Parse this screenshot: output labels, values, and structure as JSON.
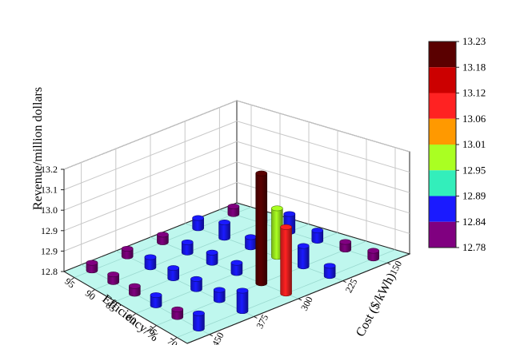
{
  "chart_data": {
    "type": "bar3d",
    "title": "",
    "zlabel": "Revenue/million dollars",
    "xlabel": "Efficiency/%",
    "ylabel": "Cost ($/kWh)",
    "z_ticks": [
      "12.8",
      "12.9",
      "12.9",
      "13.0",
      "13.1",
      "13.2"
    ],
    "zlim": [
      12.8,
      13.2
    ],
    "x_ticks": [
      "95",
      "90",
      "85",
      "80",
      "75",
      "70"
    ],
    "y_ticks": [
      "150",
      "225",
      "300",
      "375",
      "450"
    ],
    "colorbar": {
      "labels": [
        "13.23",
        "13.18",
        "13.12",
        "13.06",
        "13.01",
        "12.95",
        "12.89",
        "12.84",
        "12.78"
      ],
      "colors": [
        "#5a0000",
        "#cc0000",
        "#ff2222",
        "#ff9900",
        "#aaff22",
        "#33eebb",
        "#1a1aff",
        "#800080"
      ]
    },
    "bars": [
      {
        "x": 95,
        "y": 150,
        "z": 12.83
      },
      {
        "x": 95,
        "y": 225,
        "z": 12.84
      },
      {
        "x": 95,
        "y": 300,
        "z": 12.83
      },
      {
        "x": 95,
        "y": 375,
        "z": 12.83
      },
      {
        "x": 95,
        "y": 450,
        "z": 12.83
      },
      {
        "x": 90,
        "y": 150,
        "z": 12.84
      },
      {
        "x": 90,
        "y": 225,
        "z": 12.86
      },
      {
        "x": 90,
        "y": 300,
        "z": 12.84
      },
      {
        "x": 90,
        "y": 375,
        "z": 12.84
      },
      {
        "x": 90,
        "y": 450,
        "z": 12.83
      },
      {
        "x": 85,
        "y": 150,
        "z": 12.87
      },
      {
        "x": 85,
        "y": 225,
        "z": 12.84
      },
      {
        "x": 85,
        "y": 300,
        "z": 12.84
      },
      {
        "x": 85,
        "y": 375,
        "z": 12.84
      },
      {
        "x": 85,
        "y": 450,
        "z": 12.83
      },
      {
        "x": 80,
        "y": 150,
        "z": 12.84
      },
      {
        "x": 80,
        "y": 225,
        "z": 12.99
      },
      {
        "x": 80,
        "y": 300,
        "z": 12.84
      },
      {
        "x": 80,
        "y": 375,
        "z": 12.84
      },
      {
        "x": 80,
        "y": 450,
        "z": 12.84
      },
      {
        "x": 75,
        "y": 150,
        "z": 12.83
      },
      {
        "x": 75,
        "y": 225,
        "z": 12.88
      },
      {
        "x": 75,
        "y": 300,
        "z": 13.23
      },
      {
        "x": 75,
        "y": 375,
        "z": 12.84
      },
      {
        "x": 75,
        "y": 450,
        "z": 12.83
      },
      {
        "x": 70,
        "y": 150,
        "z": 12.83
      },
      {
        "x": 70,
        "y": 225,
        "z": 12.84
      },
      {
        "x": 70,
        "y": 300,
        "z": 13.06
      },
      {
        "x": 70,
        "y": 375,
        "z": 12.88
      },
      {
        "x": 70,
        "y": 450,
        "z": 12.86
      }
    ]
  }
}
